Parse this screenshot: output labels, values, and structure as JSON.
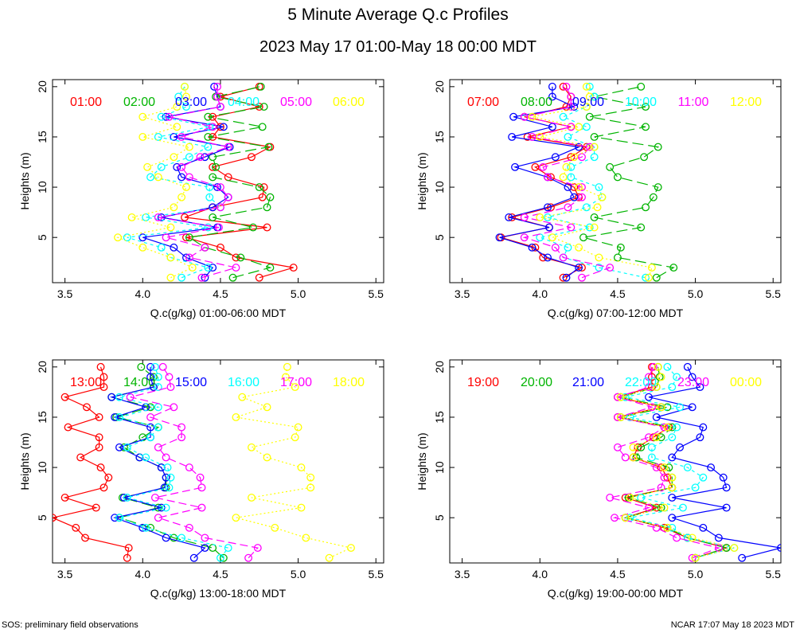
{
  "title": "5 Minute Average Q.c Profiles",
  "subtitle": "2023 May 17 01:00-May 18 00:00 MDT",
  "footer_left": "SOS: preliminary field observations",
  "footer_right": "NCAR 17:07 May 18 2023 MDT",
  "colors": [
    "#ff0000",
    "#00b400",
    "#0000ff",
    "#00ffff",
    "#ff00ff",
    "#ffff00"
  ],
  "chart_data": [
    {
      "type": "line",
      "xlabel": "Q.c(g/kg) 01:00-06:00 MDT",
      "ylabel": "Heights (m)",
      "xlim": [
        3.42,
        5.55
      ],
      "ylim": [
        0.5,
        20.7
      ],
      "xticks": [
        3.5,
        4.0,
        4.5,
        5.0,
        5.5
      ],
      "xticklabels": [
        "3.5",
        "4.0",
        "4.5",
        "5.0",
        "5.5"
      ],
      "yticks": [
        5,
        10,
        15,
        20
      ],
      "yticklabels": [
        "5",
        "10",
        "15",
        "20"
      ],
      "heights": [
        1,
        2,
        3,
        4,
        5,
        6,
        7,
        8,
        9,
        10,
        11,
        12,
        13,
        14,
        15,
        16,
        17,
        18,
        19,
        20
      ],
      "series": [
        {
          "name": "01:00",
          "values": [
            4.75,
            4.97,
            4.6,
            4.5,
            4.28,
            4.8,
            4.27,
            4.45,
            4.77,
            4.78,
            4.55,
            4.45,
            4.7,
            4.82,
            4.45,
            4.5,
            4.45,
            4.75,
            4.5,
            4.75
          ]
        },
        {
          "name": "02:00",
          "values": [
            4.58,
            4.82,
            4.63,
            4.4,
            4.3,
            4.71,
            4.45,
            4.8,
            4.82,
            4.75,
            4.45,
            4.47,
            4.45,
            4.81,
            4.42,
            4.77,
            4.42,
            4.78,
            4.47,
            4.76
          ]
        },
        {
          "name": "03:00",
          "values": [
            4.4,
            4.45,
            4.28,
            4.2,
            4.0,
            4.48,
            4.12,
            4.45,
            4.55,
            4.48,
            4.25,
            4.22,
            4.4,
            4.56,
            4.2,
            4.52,
            4.15,
            4.5,
            4.48,
            4.46
          ]
        },
        {
          "name": "04:00",
          "values": [
            4.25,
            4.42,
            4.18,
            4.12,
            3.9,
            4.42,
            4.02,
            4.5,
            4.43,
            4.43,
            4.05,
            4.12,
            4.3,
            4.42,
            4.1,
            4.43,
            4.12,
            4.28,
            4.23,
            4.27
          ]
        },
        {
          "name": "05:00",
          "values": [
            4.38,
            4.6,
            4.3,
            4.4,
            4.15,
            4.49,
            4.1,
            4.5,
            4.55,
            4.5,
            4.3,
            4.25,
            4.37,
            4.55,
            4.25,
            4.45,
            4.17,
            4.5,
            4.48,
            4.48
          ]
        },
        {
          "name": "06:00",
          "values": [
            4.18,
            4.32,
            4.18,
            4.0,
            3.84,
            4.18,
            3.93,
            4.2,
            4.25,
            4.28,
            4.1,
            4.03,
            4.2,
            4.3,
            4.0,
            4.22,
            4.0,
            4.22,
            4.28,
            4.27
          ]
        }
      ]
    },
    {
      "type": "line",
      "xlabel": "Q.c(g/kg) 07:00-12:00 MDT",
      "ylabel": "Heights (m)",
      "xlim": [
        3.42,
        5.55
      ],
      "ylim": [
        0.5,
        20.7
      ],
      "xticks": [
        3.5,
        4.0,
        4.5,
        5.0,
        5.5
      ],
      "xticklabels": [
        "3.5",
        "4.0",
        "4.5",
        "5.0",
        "5.5"
      ],
      "yticks": [
        5,
        10,
        15,
        20
      ],
      "yticklabels": [
        "5",
        "10",
        "15",
        "20"
      ],
      "heights": [
        1,
        2,
        3,
        4,
        5,
        6,
        7,
        8,
        9,
        10,
        11,
        12,
        13,
        14,
        15,
        16,
        17,
        18,
        19,
        20
      ],
      "series": [
        {
          "name": "07:00",
          "values": [
            4.15,
            4.27,
            4.02,
            3.97,
            3.75,
            4.06,
            3.82,
            4.07,
            4.25,
            4.22,
            4.07,
            3.97,
            4.2,
            4.3,
            3.92,
            4.2,
            3.9,
            4.17,
            4.2,
            4.15
          ]
        },
        {
          "name": "08:00",
          "values": [
            4.75,
            4.86,
            4.5,
            4.52,
            4.28,
            4.65,
            4.35,
            4.68,
            4.73,
            4.76,
            4.5,
            4.45,
            4.67,
            4.76,
            4.35,
            4.68,
            4.32,
            4.68,
            4.35,
            4.65
          ]
        },
        {
          "name": "09:00",
          "values": [
            4.17,
            4.25,
            4.05,
            3.95,
            3.74,
            4.06,
            3.8,
            4.05,
            4.22,
            4.18,
            4.05,
            3.84,
            4.1,
            4.25,
            3.82,
            4.08,
            3.83,
            4.22,
            4.08,
            4.08
          ]
        },
        {
          "name": "10:00",
          "values": [
            4.68,
            4.38,
            4.15,
            4.18,
            4.0,
            4.32,
            4.05,
            4.3,
            4.4,
            4.38,
            4.2,
            4.2,
            4.35,
            4.35,
            4.18,
            4.3,
            4.15,
            4.3,
            4.35,
            4.32
          ]
        },
        {
          "name": "11:00",
          "values": [
            4.27,
            4.45,
            4.15,
            4.1,
            3.9,
            4.2,
            3.9,
            4.18,
            4.27,
            4.27,
            4.05,
            4.02,
            4.27,
            4.32,
            3.95,
            4.2,
            3.9,
            4.2,
            4.2,
            4.17
          ]
        },
        {
          "name": "12:00",
          "values": [
            4.7,
            4.72,
            4.38,
            4.25,
            4.08,
            4.35,
            4.0,
            4.37,
            4.4,
            4.25,
            4.15,
            4.17,
            4.22,
            4.35,
            4.0,
            4.25,
            3.95,
            4.3,
            4.32,
            4.3
          ]
        }
      ]
    },
    {
      "type": "line",
      "xlabel": "Q.c(g/kg) 13:00-18:00 MDT",
      "ylabel": "Heights (m)",
      "xlim": [
        3.42,
        5.55
      ],
      "ylim": [
        0.5,
        20.7
      ],
      "xticks": [
        3.5,
        4.0,
        4.5,
        5.0,
        5.5
      ],
      "xticklabels": [
        "3.5",
        "4.0",
        "4.5",
        "5.0",
        "5.5"
      ],
      "yticks": [
        5,
        10,
        15,
        20
      ],
      "yticklabels": [
        "5",
        "10",
        "15",
        "20"
      ],
      "heights": [
        1,
        2,
        3,
        4,
        5,
        6,
        7,
        8,
        9,
        10,
        11,
        12,
        13,
        14,
        15,
        16,
        17,
        18,
        19,
        20
      ],
      "series": [
        {
          "name": "13:00",
          "values": [
            3.9,
            3.91,
            3.63,
            3.57,
            3.42,
            3.7,
            3.5,
            3.75,
            3.78,
            3.73,
            3.6,
            3.72,
            3.72,
            3.52,
            3.72,
            3.64,
            3.5,
            3.75,
            3.75,
            3.73
          ]
        },
        {
          "name": "14:00",
          "values": [
            4.52,
            4.45,
            4.2,
            4.05,
            3.85,
            4.1,
            3.87,
            4.15,
            4.15,
            4.12,
            3.98,
            3.88,
            4.0,
            4.1,
            3.83,
            4.05,
            3.8,
            4.07,
            4.07,
            3.99
          ]
        },
        {
          "name": "15:00",
          "values": [
            4.33,
            4.4,
            4.15,
            4.0,
            3.82,
            4.12,
            3.88,
            4.14,
            4.15,
            4.12,
            3.98,
            3.85,
            4.05,
            4.05,
            3.82,
            4.02,
            3.8,
            4.07,
            4.05,
            4.05
          ]
        },
        {
          "name": "16:00",
          "values": [
            4.5,
            4.55,
            4.25,
            4.02,
            3.85,
            4.15,
            3.9,
            4.17,
            4.18,
            4.16,
            4.02,
            3.9,
            4.05,
            4.1,
            3.85,
            4.1,
            3.85,
            4.1,
            4.1,
            4.08
          ]
        },
        {
          "name": "17:00",
          "values": [
            4.68,
            4.74,
            4.4,
            4.3,
            4.1,
            4.38,
            4.08,
            4.38,
            4.37,
            4.3,
            4.15,
            4.1,
            4.25,
            4.25,
            4.05,
            4.2,
            3.92,
            4.18,
            4.17,
            4.13
          ]
        },
        {
          "name": "18:00",
          "values": [
            5.2,
            5.34,
            5.05,
            4.85,
            4.6,
            5.02,
            4.7,
            5.08,
            5.08,
            5.02,
            4.8,
            4.7,
            4.98,
            5.0,
            4.6,
            4.8,
            4.64,
            4.98,
            4.92,
            4.93
          ]
        }
      ]
    },
    {
      "type": "line",
      "xlabel": "Q.c(g/kg) 19:00-00:00 MDT",
      "ylabel": "Heights (m)",
      "xlim": [
        3.42,
        5.55
      ],
      "ylim": [
        0.5,
        20.7
      ],
      "xticks": [
        3.5,
        4.0,
        4.5,
        5.0,
        5.5
      ],
      "xticklabels": [
        "3.5",
        "4.0",
        "4.5",
        "5.0",
        "5.5"
      ],
      "yticks": [
        5,
        10,
        15,
        20
      ],
      "yticklabels": [
        "5",
        "10",
        "15",
        "20"
      ],
      "heights": [
        1,
        2,
        3,
        4,
        5,
        6,
        7,
        8,
        9,
        10,
        11,
        12,
        13,
        14,
        15,
        16,
        17,
        18,
        19,
        20
      ],
      "series": [
        {
          "name": "19:00",
          "values": [
            5.0,
            5.2,
            4.95,
            4.8,
            4.55,
            4.75,
            4.55,
            4.85,
            4.82,
            4.78,
            4.6,
            4.63,
            4.73,
            4.83,
            4.5,
            4.78,
            4.5,
            4.72,
            4.72,
            4.72
          ]
        },
        {
          "name": "20:00",
          "values": [
            5.0,
            5.2,
            4.95,
            4.82,
            4.55,
            4.78,
            4.57,
            4.85,
            4.85,
            4.83,
            4.62,
            4.65,
            4.78,
            4.85,
            4.52,
            4.82,
            4.52,
            4.75,
            4.77,
            4.76
          ]
        },
        {
          "name": "21:00",
          "values": [
            5.3,
            5.55,
            5.15,
            5.05,
            4.85,
            5.2,
            4.85,
            5.2,
            5.18,
            5.1,
            4.85,
            4.9,
            5.03,
            5.05,
            4.75,
            4.98,
            4.7,
            5.03,
            4.98,
            4.95
          ]
        },
        {
          "name": "22:00",
          "values": [
            5.0,
            5.25,
            4.95,
            4.85,
            4.58,
            4.92,
            4.65,
            5.0,
            5.05,
            4.95,
            4.72,
            4.72,
            4.85,
            4.88,
            4.58,
            4.9,
            4.55,
            4.85,
            4.88,
            4.82
          ]
        },
        {
          "name": "23:00",
          "values": [
            4.98,
            5.15,
            4.88,
            4.75,
            4.48,
            4.7,
            4.45,
            4.78,
            4.8,
            4.75,
            4.55,
            4.5,
            4.7,
            4.8,
            4.5,
            4.72,
            4.5,
            4.7,
            4.7,
            4.73
          ]
        },
        {
          "name": "00:00",
          "values": [
            5.0,
            5.25,
            4.98,
            4.82,
            4.55,
            4.8,
            4.58,
            4.85,
            4.85,
            4.8,
            4.6,
            4.6,
            4.75,
            4.82,
            4.52,
            4.78,
            4.52,
            4.75,
            4.78,
            4.76
          ]
        }
      ]
    }
  ]
}
